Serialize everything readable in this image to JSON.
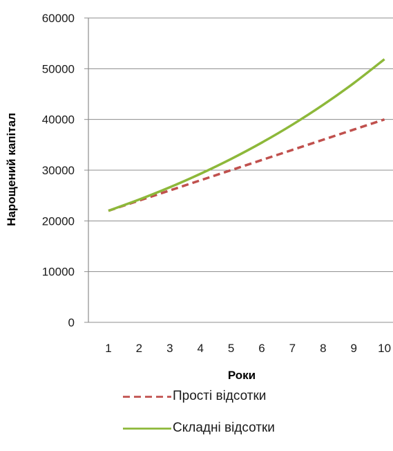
{
  "chart_data": {
    "type": "line",
    "title": "",
    "xlabel": "Роки",
    "ylabel": "Нарощений капітал",
    "categories": [
      "1",
      "2",
      "3",
      "4",
      "5",
      "6",
      "7",
      "8",
      "9",
      "10"
    ],
    "y_ticks": [
      "0",
      "10000",
      "20000",
      "30000",
      "40000",
      "50000",
      "60000"
    ],
    "ylim": [
      0,
      60000
    ],
    "grid": "horizontal",
    "legend_position": "bottom",
    "series": [
      {
        "name": "Прості відсотки",
        "color": "#c0504d",
        "dash": "dashed",
        "values": [
          22000,
          24000,
          26000,
          28000,
          30000,
          32000,
          34000,
          36000,
          38000,
          40000
        ]
      },
      {
        "name": "Складні відсотки",
        "color": "#8db83a",
        "dash": "solid",
        "values": [
          22000,
          24200,
          26620,
          29282,
          32210,
          35431,
          38974,
          42872,
          47159,
          51875
        ]
      }
    ]
  }
}
